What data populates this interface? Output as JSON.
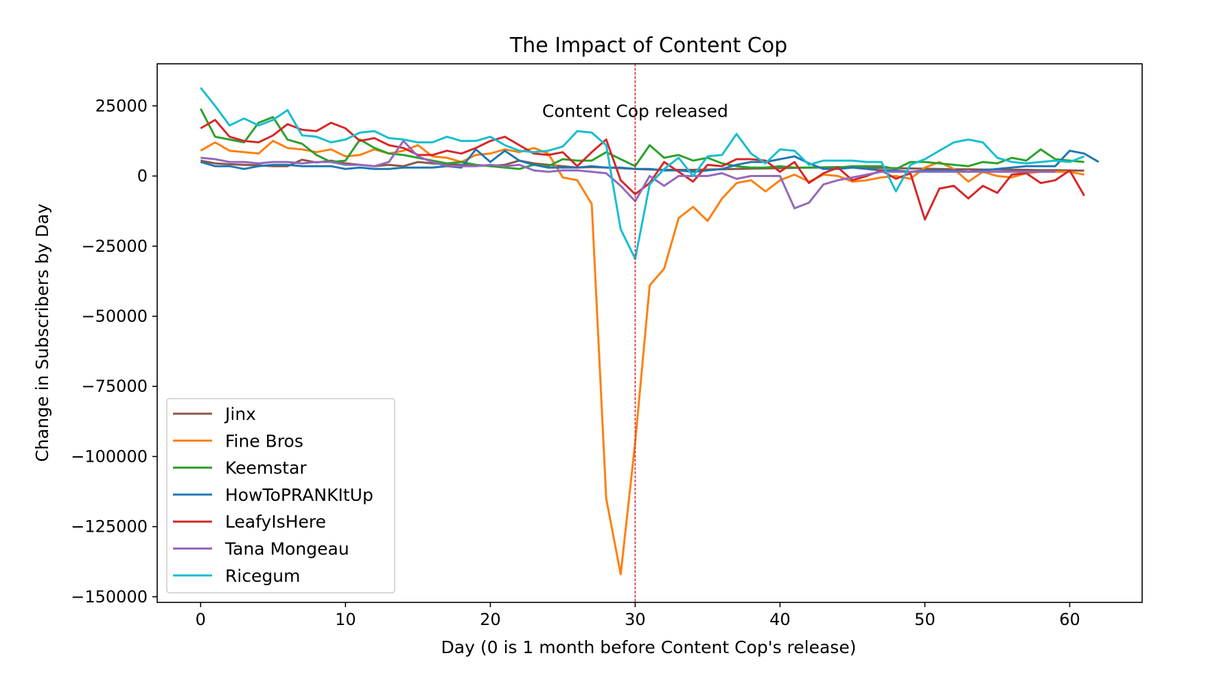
{
  "chart_data": {
    "type": "line",
    "title": "The Impact of Content Cop",
    "xlabel": "Day (0 is 1 month before Content Cop's release)",
    "ylabel": "Change in Subscribers by Day",
    "xlim": [
      -3,
      65
    ],
    "ylim": [
      -152000,
      40000
    ],
    "xticks": [
      0,
      10,
      20,
      30,
      40,
      50,
      60
    ],
    "yticks": [
      25000,
      0,
      -25000,
      -50000,
      -75000,
      -100000,
      -125000,
      -150000
    ],
    "ytick_labels": [
      "25000",
      "0",
      "−25000",
      "−50000",
      "−75000",
      "−100000",
      "−125000",
      "−150000"
    ],
    "grid": false,
    "legend_position": "lower-left",
    "annotation": {
      "text": "Content Cop released",
      "x": 30,
      "y": 21000
    },
    "reference_line": {
      "x": 30,
      "color": "#d62728",
      "style": "dashed"
    },
    "series": [
      {
        "name": "Jinx",
        "color": "#8c564b",
        "values": [
          5500,
          4500,
          4200,
          4000,
          3800,
          3500,
          3500,
          5800,
          4800,
          5500,
          4500,
          4000,
          3500,
          4000,
          3500,
          5000,
          4500,
          4200,
          4000,
          3800,
          3600,
          4000,
          5500,
          4500,
          4000,
          3500,
          3000,
          3200,
          3000,
          2800,
          2500,
          2300,
          2200,
          2200,
          2200,
          2300,
          2400,
          2500,
          2600,
          2700,
          2800,
          2900,
          3000,
          3100,
          3200,
          3100,
          3000,
          2900,
          2800,
          2700,
          2600,
          2500,
          2400,
          2400,
          2300,
          2300,
          2200,
          2200,
          2100,
          2100,
          2000,
          1900
        ]
      },
      {
        "name": "Fine Bros",
        "color": "#ff7f0e",
        "values": [
          9000,
          12000,
          9000,
          8500,
          8000,
          12500,
          10000,
          9500,
          8500,
          9500,
          7000,
          7500,
          9500,
          8000,
          9000,
          11000,
          7000,
          6500,
          5000,
          7500,
          8000,
          9500,
          8500,
          10000,
          8000,
          -500,
          -1500,
          -10000,
          -115000,
          -142000,
          -95000,
          -39000,
          -33000,
          -15000,
          -11000,
          -16000,
          -8000,
          -2500,
          -1500,
          -5500,
          -1500,
          500,
          -2000,
          500,
          0,
          -2000,
          -1500,
          -500,
          0,
          -1000,
          3000,
          5000,
          2500,
          -2000,
          1500,
          0,
          -500,
          1000,
          1500,
          1500,
          1500,
          500
        ]
      },
      {
        "name": "Keemstar",
        "color": "#2ca02c",
        "values": [
          24000,
          14000,
          13000,
          12000,
          19000,
          21000,
          13000,
          11500,
          7500,
          5000,
          5500,
          13000,
          10000,
          8000,
          7500,
          6500,
          5500,
          4500,
          5000,
          4000,
          3500,
          3000,
          2500,
          4000,
          3500,
          6000,
          5500,
          5500,
          8500,
          6000,
          3500,
          11000,
          6500,
          7500,
          5500,
          6500,
          4500,
          3500,
          3000,
          3000,
          3500,
          3000,
          3000,
          3000,
          3000,
          3500,
          3500,
          3500,
          2500,
          5000,
          5000,
          4500,
          4000,
          3500,
          5000,
          4500,
          6500,
          5500,
          9500,
          6000,
          5500,
          5000
        ]
      },
      {
        "name": "HowToPRANKItUp",
        "color": "#1f77b4",
        "values": [
          5000,
          3500,
          3500,
          2500,
          3500,
          4000,
          4000,
          3500,
          3500,
          3500,
          2500,
          3000,
          2500,
          2500,
          3000,
          3000,
          3000,
          3500,
          3000,
          9500,
          5000,
          9000,
          5500,
          4000,
          3000,
          3000,
          3000,
          3500,
          3000,
          3000,
          2500,
          2500,
          2000,
          2000,
          1500,
          2000,
          2500,
          4000,
          5000,
          5000,
          6000,
          7000,
          4500,
          2500,
          2500,
          3000,
          2500,
          2000,
          2000,
          1500,
          2000,
          2000,
          2000,
          1500,
          2000,
          2500,
          3000,
          3500,
          3500,
          3500,
          9000,
          8000,
          5000
        ]
      },
      {
        "name": "LeafyIsHere",
        "color": "#d62728",
        "values": [
          17000,
          20000,
          14000,
          12500,
          12000,
          14500,
          18500,
          16500,
          16000,
          19000,
          17000,
          12500,
          13500,
          11000,
          10000,
          7500,
          7500,
          9000,
          8000,
          10000,
          12500,
          14000,
          11000,
          8000,
          7500,
          8500,
          3500,
          8500,
          13000,
          -1500,
          -6500,
          -2500,
          5000,
          1500,
          -2000,
          4000,
          3500,
          6000,
          6000,
          5500,
          1500,
          5000,
          -2500,
          1000,
          3000,
          -1500,
          0,
          2000,
          -1000,
          1000,
          -15500,
          -4500,
          -3500,
          -8000,
          -3500,
          -6000,
          500,
          1000,
          -2500,
          -1500,
          2000,
          -7000
        ]
      },
      {
        "name": "Tana Mongeau",
        "color": "#9467bd",
        "values": [
          6500,
          6000,
          5000,
          5000,
          4500,
          5000,
          5000,
          4500,
          5000,
          5000,
          4000,
          4000,
          3500,
          5000,
          12500,
          7000,
          5000,
          3500,
          3500,
          3500,
          4000,
          3500,
          4000,
          2000,
          1500,
          2000,
          2000,
          1500,
          1000,
          -3500,
          -9000,
          0,
          -3500,
          0,
          0,
          0,
          1000,
          -1000,
          0,
          0,
          0,
          -11500,
          -9500,
          -3000,
          -1500,
          -500,
          500,
          1500,
          1500,
          1500,
          1500,
          1500,
          1500,
          1500,
          1500,
          1500,
          1500,
          1500,
          1500,
          1500
        ]
      },
      {
        "name": "Ricegum",
        "color": "#17becf",
        "values": [
          31500,
          25000,
          18000,
          20500,
          18000,
          20000,
          23500,
          14500,
          14000,
          12000,
          13000,
          15500,
          16000,
          13500,
          13000,
          12000,
          12000,
          14000,
          12500,
          12500,
          14000,
          11000,
          9000,
          8500,
          9000,
          10500,
          16000,
          15500,
          11000,
          -19000,
          -29500,
          -3000,
          2500,
          6500,
          0,
          7000,
          7500,
          15000,
          8000,
          4500,
          9500,
          9000,
          4000,
          5500,
          5500,
          5500,
          5000,
          5000,
          -5500,
          4000,
          6000,
          9000,
          12000,
          13000,
          12000,
          6500,
          5000,
          4500,
          5000,
          5500,
          5000,
          7000
        ]
      }
    ]
  }
}
